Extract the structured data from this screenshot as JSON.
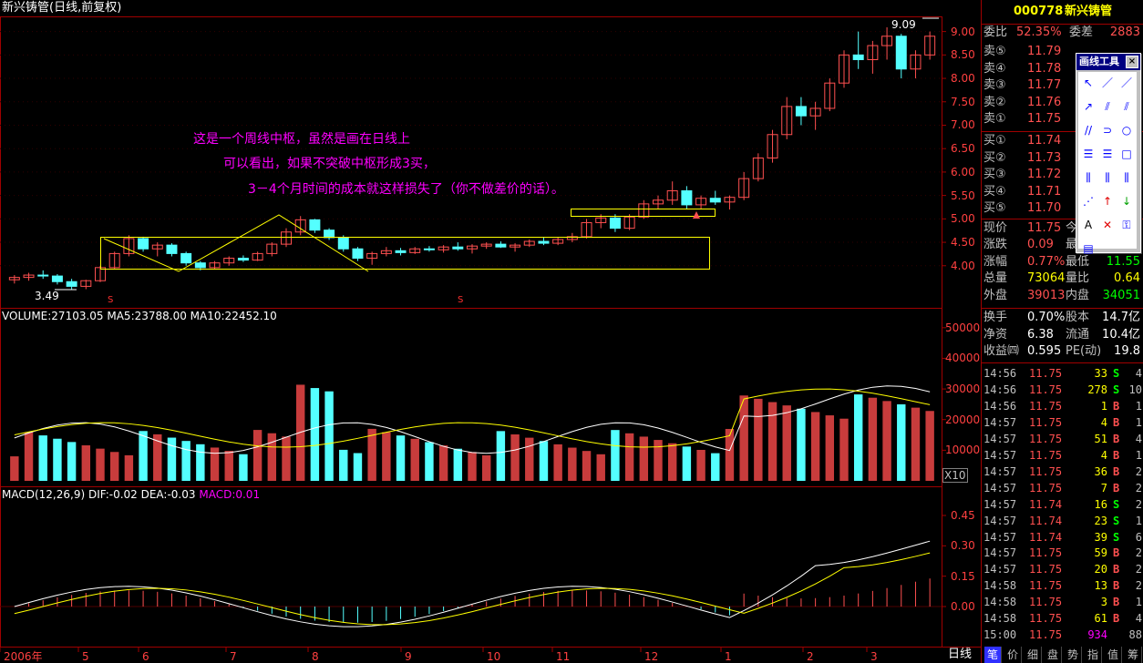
{
  "chart_title": "新兴铸管(日线,前复权)",
  "volume_header": {
    "text": "VOLUME:27103.05  MA5:23788.00  MA10:22452.10"
  },
  "macd_header": {
    "prefix": "MACD(12,26,9) DIF:-0.02 DEA:-0.03 ",
    "macd": "MACD:0.01"
  },
  "annotations": [
    "这是一个周线中枢，虽然是画在日线上",
    "可以看出，如果不突破中枢形成3买，",
    "3－4个月时间的成本就这样损失了（你不做差价的话）。"
  ],
  "price_markers": {
    "low": "3.49",
    "high": "9.09"
  },
  "volume_unit": "X10",
  "signal_mark": "S",
  "price_axis": [
    "9.00",
    "8.50",
    "8.00",
    "7.50",
    "7.00",
    "6.50",
    "6.00",
    "5.50",
    "5.00",
    "4.50",
    "4.00"
  ],
  "volume_axis": [
    "50000",
    "40000",
    "30000",
    "20000",
    "10000"
  ],
  "macd_axis": [
    "0.45",
    "0.30",
    "0.15",
    "0.00"
  ],
  "x_axis": [
    "2006年",
    "5",
    "6",
    "7",
    "8",
    "9",
    "10",
    "11",
    "12",
    "1",
    "2",
    "3"
  ],
  "period_label": "日线",
  "colors": {
    "up": "#ff5050",
    "down": "#54ffff",
    "ma": "#ffff00",
    "frame": "#a00000",
    "accent": "#ffff00",
    "purple": "#ff00ff",
    "green": "#00ff00"
  },
  "quote": {
    "code": "000778",
    "name": "新兴铸管",
    "weibi_label": "委比",
    "weibi": "52.35%",
    "weicha_label": "委差",
    "weicha": "2883",
    "asks": [
      {
        "label": "卖⑤",
        "price": "11.79",
        "vol": ""
      },
      {
        "label": "卖④",
        "price": "11.78",
        "vol": ""
      },
      {
        "label": "卖③",
        "price": "11.77",
        "vol": ""
      },
      {
        "label": "卖②",
        "price": "11.76",
        "vol": ""
      },
      {
        "label": "卖①",
        "price": "11.75",
        "vol": ""
      }
    ],
    "bids": [
      {
        "label": "买①",
        "price": "11.74",
        "vol": ""
      },
      {
        "label": "买②",
        "price": "11.73",
        "vol": ""
      },
      {
        "label": "买③",
        "price": "11.72",
        "vol": ""
      },
      {
        "label": "买④",
        "price": "11.71",
        "vol": ""
      },
      {
        "label": "买⑤",
        "price": "11.70",
        "vol": ""
      }
    ],
    "stats": [
      {
        "l1": "现价",
        "v1": "11.75",
        "l2": "今",
        "v2": ""
      },
      {
        "l1": "涨跌",
        "v1": "0.09",
        "l2": "最",
        "v2": ""
      },
      {
        "l1": "涨幅",
        "v1": "0.77%",
        "l2": "最低",
        "v2": "11.55"
      },
      {
        "l1": "总量",
        "v1": "73064",
        "l2": "量比",
        "v2": "0.64"
      },
      {
        "l1": "外盘",
        "v1": "39013",
        "l2": "内盘",
        "v2": "34051"
      }
    ],
    "stats2": [
      {
        "l1": "换手",
        "v1": "0.70%",
        "l2": "股本",
        "v2": "14.7亿"
      },
      {
        "l1": "净资",
        "v1": "6.38",
        "l2": "流通",
        "v2": "10.4亿"
      },
      {
        "l1": "收益㈣",
        "v1": "0.595",
        "l2": "PE(动)",
        "v2": "19.8"
      }
    ]
  },
  "ticks": [
    {
      "time": "14:56",
      "price": "11.75",
      "vol": "33",
      "side": "S",
      "n": "4"
    },
    {
      "time": "14:56",
      "price": "11.75",
      "vol": "278",
      "side": "S",
      "n": "10"
    },
    {
      "time": "14:56",
      "price": "11.75",
      "vol": "1",
      "side": "B",
      "n": "1"
    },
    {
      "time": "14:57",
      "price": "11.75",
      "vol": "4",
      "side": "B",
      "n": "1"
    },
    {
      "time": "14:57",
      "price": "11.75",
      "vol": "51",
      "side": "B",
      "n": "4"
    },
    {
      "time": "14:57",
      "price": "11.75",
      "vol": "4",
      "side": "B",
      "n": "1"
    },
    {
      "time": "14:57",
      "price": "11.75",
      "vol": "36",
      "side": "B",
      "n": "2"
    },
    {
      "time": "14:57",
      "price": "11.75",
      "vol": "7",
      "side": "B",
      "n": "2"
    },
    {
      "time": "14:57",
      "price": "11.74",
      "vol": "16",
      "side": "S",
      "n": "2"
    },
    {
      "time": "14:57",
      "price": "11.74",
      "vol": "23",
      "side": "S",
      "n": "1"
    },
    {
      "time": "14:57",
      "price": "11.74",
      "vol": "39",
      "side": "S",
      "n": "6"
    },
    {
      "time": "14:57",
      "price": "11.75",
      "vol": "59",
      "side": "B",
      "n": "2"
    },
    {
      "time": "14:57",
      "price": "11.75",
      "vol": "20",
      "side": "B",
      "n": "2"
    },
    {
      "time": "14:58",
      "price": "11.75",
      "vol": "13",
      "side": "B",
      "n": "2"
    },
    {
      "time": "14:58",
      "price": "11.75",
      "vol": "3",
      "side": "B",
      "n": "1"
    },
    {
      "time": "14:58",
      "price": "11.75",
      "vol": "61",
      "side": "B",
      "n": "4"
    },
    {
      "time": "15:00",
      "price": "11.75",
      "vol": "934",
      "side": "",
      "n": "88"
    }
  ],
  "toolbox": {
    "title": "画线工具",
    "close": "×"
  },
  "tools": [
    {
      "name": "cursor-tool-icon",
      "g": "↖"
    },
    {
      "name": "line-tool-icon",
      "g": "／"
    },
    {
      "name": "ray-tool-icon",
      "g": "／"
    },
    {
      "name": "arrow-line-tool-icon",
      "g": "↗"
    },
    {
      "name": "parallel-line-tool-icon",
      "g": "⫽"
    },
    {
      "name": "channel-tool-icon",
      "g": "⫽"
    },
    {
      "name": "parallel-channel-tool-icon",
      "g": "//"
    },
    {
      "name": "arc-tool-icon",
      "g": "⊃"
    },
    {
      "name": "circle-tool-icon",
      "g": "○"
    },
    {
      "name": "gold-ratio-tool-icon",
      "g": "☰"
    },
    {
      "name": "percent-line-tool-icon",
      "g": "☰"
    },
    {
      "name": "rectangle-tool-icon",
      "g": "□"
    },
    {
      "name": "time-cycle-tool-icon",
      "g": "⫼"
    },
    {
      "name": "fibonacci-tool-icon",
      "g": "⫼"
    },
    {
      "name": "linear-regression-tool-icon",
      "g": "⫼"
    },
    {
      "name": "gann-fan-tool-icon",
      "g": "⋰"
    },
    {
      "name": "up-arrow-tool-icon",
      "g": "↑"
    },
    {
      "name": "down-arrow-tool-icon",
      "g": "↓"
    },
    {
      "name": "text-tool-icon",
      "g": "A"
    },
    {
      "name": "delete-tool-icon",
      "g": "✕"
    },
    {
      "name": "lock-tool-icon",
      "g": "⚿"
    },
    {
      "name": "toolbox-list-icon",
      "g": "▤"
    }
  ],
  "bottom_tabs": [
    "笔",
    "价",
    "细",
    "盘",
    "势",
    "指",
    "值",
    "筹"
  ],
  "chart_data": {
    "type": "candlestick",
    "title": "新兴铸管(日线,前复权)",
    "price_range": [
      3.49,
      9.09
    ],
    "candles_ohlc": [
      [
        3.7,
        3.8,
        3.62,
        3.75
      ],
      [
        3.75,
        3.85,
        3.68,
        3.8
      ],
      [
        3.8,
        3.9,
        3.72,
        3.78
      ],
      [
        3.78,
        3.82,
        3.6,
        3.66
      ],
      [
        3.66,
        3.72,
        3.49,
        3.56
      ],
      [
        3.56,
        3.7,
        3.5,
        3.68
      ],
      [
        3.68,
        4.0,
        3.65,
        3.96
      ],
      [
        3.96,
        4.3,
        3.92,
        4.26
      ],
      [
        4.26,
        4.65,
        4.2,
        4.58
      ],
      [
        4.58,
        4.62,
        4.3,
        4.36
      ],
      [
        4.36,
        4.5,
        4.2,
        4.44
      ],
      [
        4.44,
        4.48,
        4.2,
        4.26
      ],
      [
        4.26,
        4.3,
        4.0,
        4.06
      ],
      [
        4.06,
        4.1,
        3.9,
        3.96
      ],
      [
        3.96,
        4.1,
        3.92,
        4.06
      ],
      [
        4.06,
        4.2,
        4.0,
        4.16
      ],
      [
        4.16,
        4.22,
        4.08,
        4.12
      ],
      [
        4.12,
        4.3,
        4.1,
        4.26
      ],
      [
        4.26,
        4.5,
        4.2,
        4.46
      ],
      [
        4.46,
        4.8,
        4.4,
        4.72
      ],
      [
        4.72,
        5.06,
        4.65,
        4.98
      ],
      [
        4.98,
        5.0,
        4.7,
        4.76
      ],
      [
        4.76,
        4.8,
        4.55,
        4.6
      ],
      [
        4.6,
        4.65,
        4.3,
        4.36
      ],
      [
        4.36,
        4.4,
        4.1,
        4.16
      ],
      [
        4.16,
        4.3,
        4.02,
        4.26
      ],
      [
        4.26,
        4.4,
        4.2,
        4.32
      ],
      [
        4.32,
        4.38,
        4.22,
        4.28
      ],
      [
        4.28,
        4.4,
        4.25,
        4.36
      ],
      [
        4.36,
        4.42,
        4.3,
        4.34
      ],
      [
        4.34,
        4.44,
        4.28,
        4.4
      ],
      [
        4.4,
        4.5,
        4.32,
        4.36
      ],
      [
        4.36,
        4.46,
        4.26,
        4.42
      ],
      [
        4.42,
        4.5,
        4.36,
        4.46
      ],
      [
        4.46,
        4.52,
        4.38,
        4.4
      ],
      [
        4.4,
        4.48,
        4.3,
        4.44
      ],
      [
        4.44,
        4.56,
        4.4,
        4.52
      ],
      [
        4.52,
        4.6,
        4.44,
        4.48
      ],
      [
        4.48,
        4.6,
        4.44,
        4.56
      ],
      [
        4.56,
        4.7,
        4.5,
        4.62
      ],
      [
        4.62,
        5.0,
        4.58,
        4.92
      ],
      [
        4.92,
        5.1,
        4.8,
        5.02
      ],
      [
        5.02,
        5.1,
        4.72,
        4.8
      ],
      [
        4.8,
        5.1,
        4.76,
        5.04
      ],
      [
        5.04,
        5.4,
        5.0,
        5.32
      ],
      [
        5.32,
        5.5,
        5.2,
        5.4
      ],
      [
        5.4,
        5.8,
        5.3,
        5.6
      ],
      [
        5.6,
        5.7,
        5.2,
        5.3
      ],
      [
        5.3,
        5.5,
        5.2,
        5.44
      ],
      [
        5.44,
        5.6,
        5.3,
        5.36
      ],
      [
        5.36,
        5.5,
        5.2,
        5.46
      ],
      [
        5.46,
        6.0,
        5.4,
        5.86
      ],
      [
        5.86,
        6.4,
        5.8,
        6.3
      ],
      [
        6.3,
        6.9,
        6.2,
        6.8
      ],
      [
        6.8,
        7.6,
        6.7,
        7.4
      ],
      [
        7.4,
        7.6,
        7.0,
        7.2
      ],
      [
        7.2,
        7.5,
        6.9,
        7.36
      ],
      [
        7.36,
        8.0,
        7.3,
        7.9
      ],
      [
        7.9,
        8.6,
        7.8,
        8.5
      ],
      [
        8.5,
        9.0,
        8.2,
        8.4
      ],
      [
        8.4,
        8.8,
        8.1,
        8.7
      ],
      [
        8.7,
        9.09,
        8.4,
        8.9
      ],
      [
        8.9,
        8.95,
        8.0,
        8.2
      ],
      [
        8.2,
        8.6,
        8.0,
        8.5
      ],
      [
        8.5,
        9.0,
        8.4,
        8.9
      ]
    ],
    "volume_range": [
      0,
      55000
    ],
    "macd_range": [
      -0.15,
      0.5
    ],
    "series": [
      {
        "name": "VOLUME",
        "values": [
          27103.05
        ]
      },
      {
        "name": "MA5",
        "values": [
          23788.0
        ]
      },
      {
        "name": "MA10",
        "values": [
          22452.1
        ]
      },
      {
        "name": "DIF",
        "values": [
          -0.02
        ]
      },
      {
        "name": "DEA",
        "values": [
          -0.03
        ]
      },
      {
        "name": "MACD",
        "values": [
          0.01
        ]
      }
    ]
  }
}
